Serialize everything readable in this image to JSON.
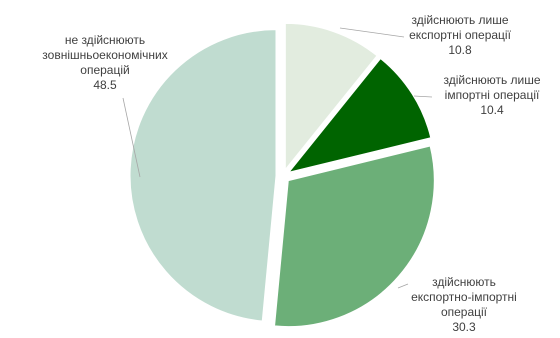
{
  "chart_data": {
    "type": "pie",
    "slices": [
      {
        "label_lines": [
          "здійснюють лише",
          "експортні операції"
        ],
        "value": 10.8,
        "display_value": "10.8",
        "color": "#e2ecdf",
        "exploded": true
      },
      {
        "label_lines": [
          "здійснюють лише",
          "імпортні операції"
        ],
        "value": 10.4,
        "display_value": "10.4",
        "color": "#006400",
        "exploded": true
      },
      {
        "label_lines": [
          "здійснюють",
          "експортно-імпортні",
          "операції"
        ],
        "value": 30.3,
        "display_value": "30.3",
        "color": "#6caf78",
        "exploded": true
      },
      {
        "label_lines": [
          "не здійснюють",
          "зовнішньоекономічних",
          "операцій"
        ],
        "value": 48.5,
        "display_value": "48.5",
        "color": "#c0dcd0",
        "exploded": true
      }
    ],
    "legend": "none"
  }
}
